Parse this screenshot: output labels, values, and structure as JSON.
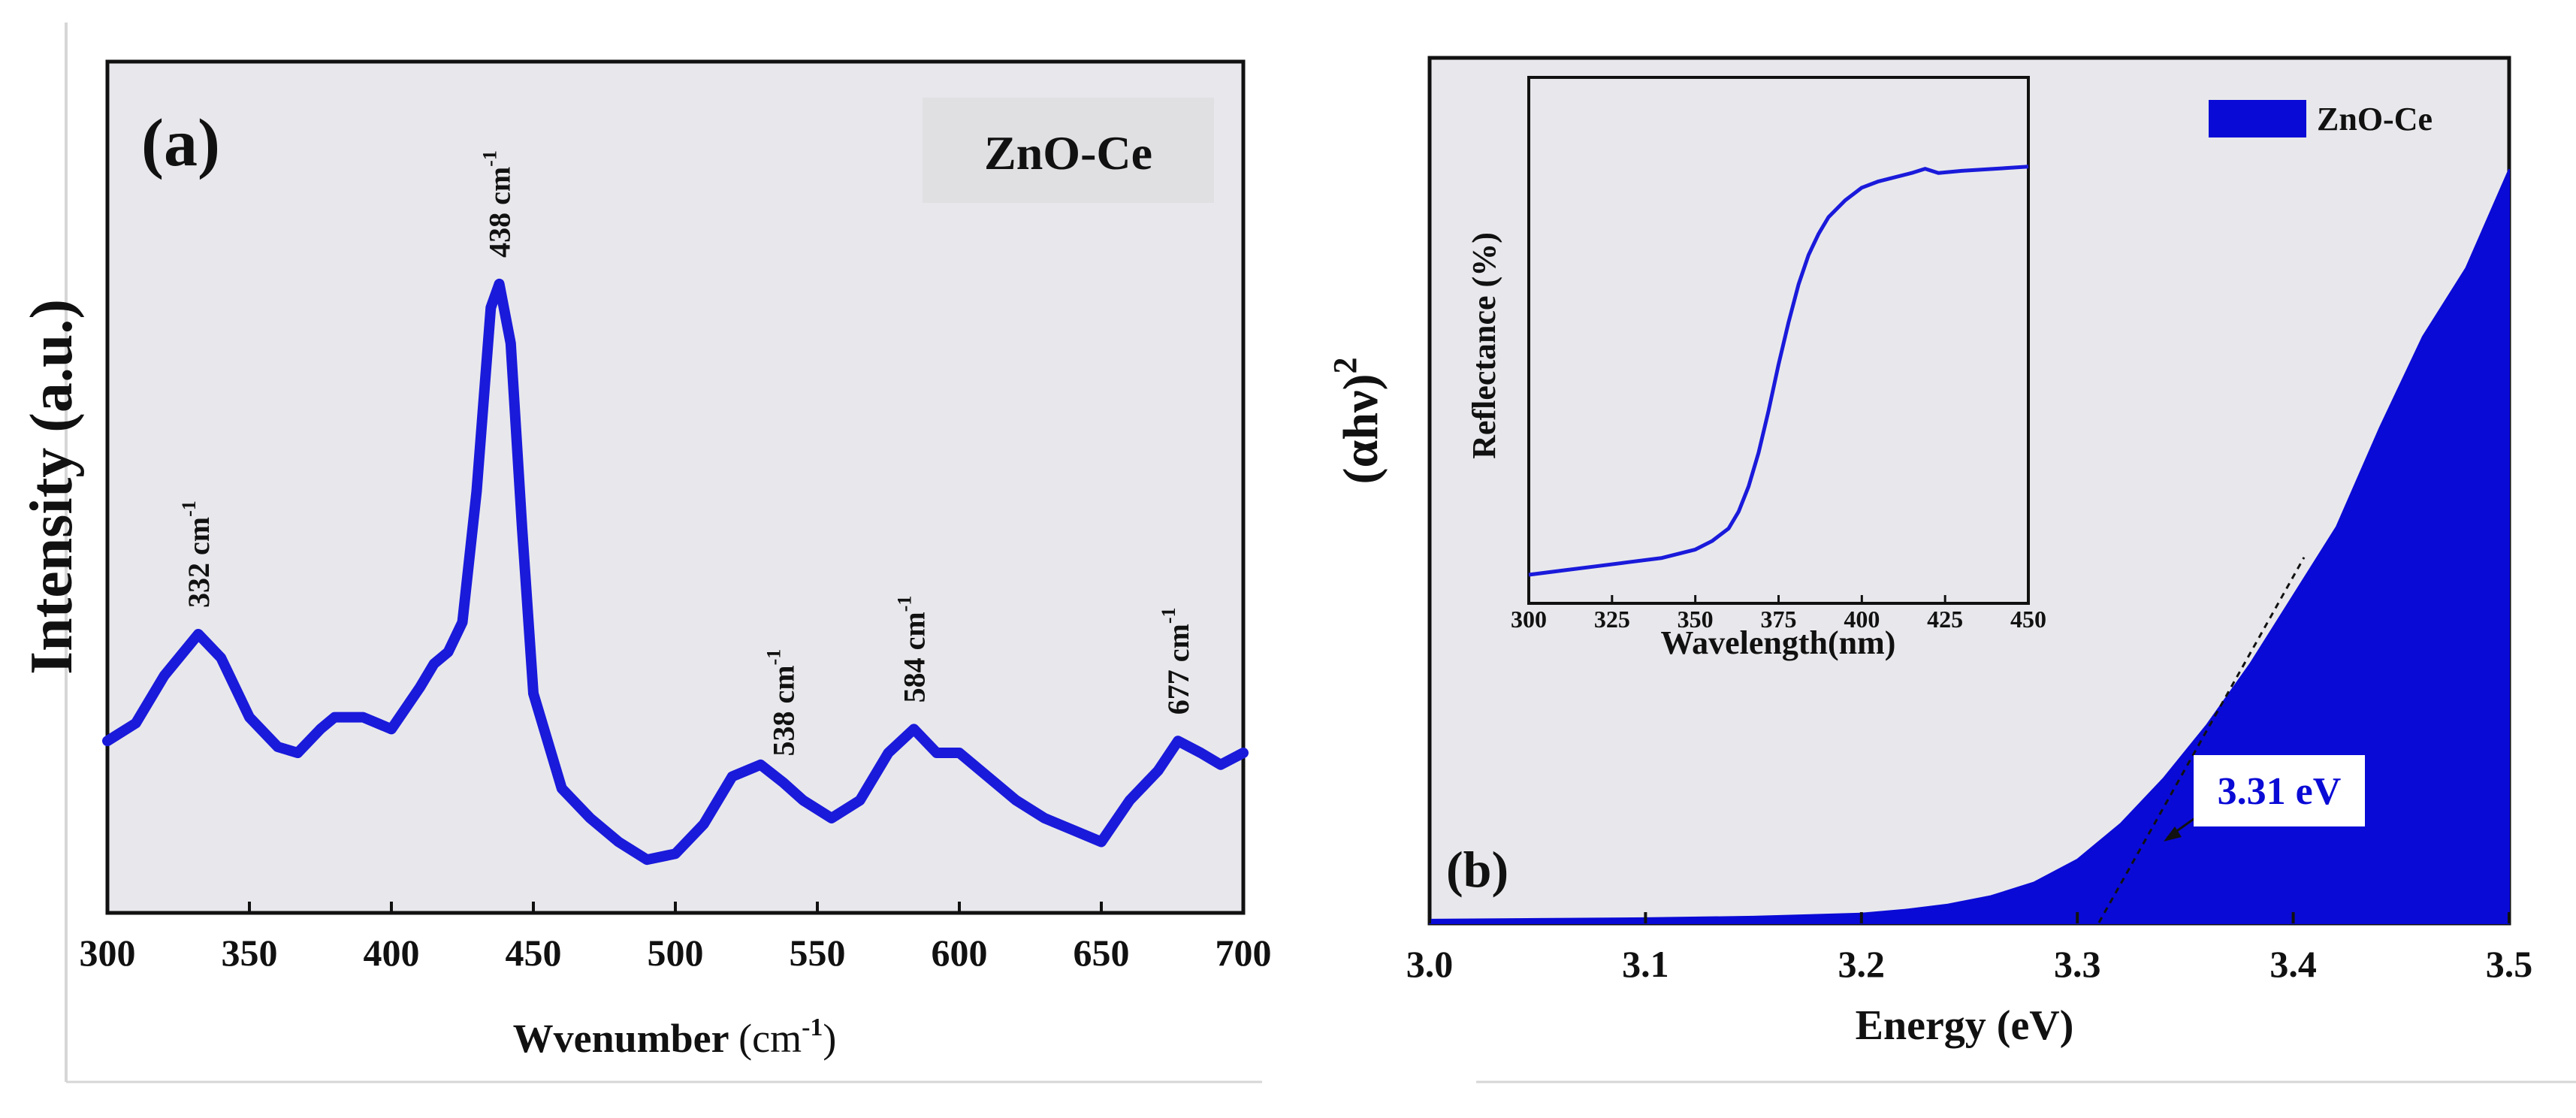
{
  "chart_data": [
    {
      "type": "line",
      "panel_label": "(a)",
      "title": "",
      "legend": "ZnO-Ce",
      "xlabel": "Wvenumber",
      "xlabel_unit_base": "(cm",
      "xlabel_unit_exp": "-1",
      "xlabel_unit_close": ")",
      "ylabel": "Intensity (a.u.)",
      "xlim": [
        300,
        700
      ],
      "ylim": [
        0,
        100
      ],
      "xticks": [
        "300",
        "350",
        "400",
        "450",
        "500",
        "550",
        "600",
        "650",
        "700"
      ],
      "color": "#1a1adb",
      "x": [
        300,
        310,
        320,
        332,
        340,
        350,
        360,
        367,
        375,
        380,
        390,
        400,
        410,
        415,
        420,
        425,
        430,
        435,
        438,
        442,
        446,
        450,
        460,
        470,
        480,
        490,
        500,
        510,
        520,
        530,
        538,
        545,
        555,
        565,
        575,
        584,
        592,
        600,
        610,
        620,
        630,
        640,
        650,
        660,
        670,
        677,
        685,
        692,
        700
      ],
      "y": [
        22,
        25,
        33,
        40,
        36,
        26,
        21,
        20,
        24,
        26,
        26,
        24,
        31,
        35,
        37,
        42,
        64,
        95,
        99,
        89,
        58,
        30,
        14,
        9,
        5,
        2,
        3,
        8,
        16,
        18,
        15,
        12,
        9,
        12,
        20,
        24,
        20,
        20,
        16,
        12,
        9,
        7,
        5,
        12,
        17,
        22,
        20,
        18,
        20
      ],
      "peaks": [
        {
          "x": 332,
          "label": "332 cm",
          "exp": "-1"
        },
        {
          "x": 438,
          "label": "438 cm",
          "exp": "-1"
        },
        {
          "x": 538,
          "label": "538 cm",
          "exp": "-1"
        },
        {
          "x": 584,
          "label": "584 cm",
          "exp": "-1"
        },
        {
          "x": 677,
          "label": "677 cm",
          "exp": "-1"
        }
      ]
    },
    {
      "type": "area",
      "panel_label": "(b)",
      "title": "",
      "legend": "ZnO-Ce",
      "xlabel": "Energy (eV)",
      "ylabel_base": "(αhν)",
      "ylabel_exp": "2",
      "xlim": [
        3.0,
        3.5
      ],
      "ylim": [
        0,
        100
      ],
      "xticks": [
        "3.0",
        "3.1",
        "3.2",
        "3.3",
        "3.4",
        "3.5"
      ],
      "color": "#0a0ad6",
      "x": [
        3.0,
        3.05,
        3.1,
        3.15,
        3.2,
        3.22,
        3.24,
        3.26,
        3.28,
        3.3,
        3.32,
        3.34,
        3.36,
        3.38,
        3.4,
        3.42,
        3.44,
        3.46,
        3.48,
        3.5
      ],
      "y": [
        0.4,
        0.5,
        0.6,
        0.8,
        1.2,
        1.7,
        2.4,
        3.5,
        5.3,
        8.3,
        13,
        19,
        26,
        34,
        43,
        52,
        65,
        77,
        86,
        99
      ],
      "band_gap": {
        "x": 3.31,
        "label": "3.31 eV"
      },
      "inset": {
        "type": "line",
        "xlabel": "Wavelength(nm)",
        "ylabel": "Reflectance (%)",
        "xlim": [
          300,
          450
        ],
        "ylim": [
          0,
          100
        ],
        "xticks": [
          "300",
          "325",
          "350",
          "375",
          "400",
          "425",
          "450"
        ],
        "x": [
          300,
          310,
          320,
          330,
          340,
          350,
          355,
          360,
          363,
          366,
          369,
          372,
          375,
          378,
          381,
          384,
          387,
          390,
          395,
          400,
          405,
          410,
          415,
          419,
          423,
          430,
          440,
          450
        ],
        "y": [
          0,
          1,
          2,
          3,
          4,
          6,
          8,
          11,
          15,
          21,
          29,
          39,
          50,
          60,
          69,
          76,
          81,
          85,
          89,
          92,
          93.5,
          94.5,
          95.5,
          96.5,
          95.5,
          96,
          96.5,
          97
        ]
      }
    }
  ]
}
